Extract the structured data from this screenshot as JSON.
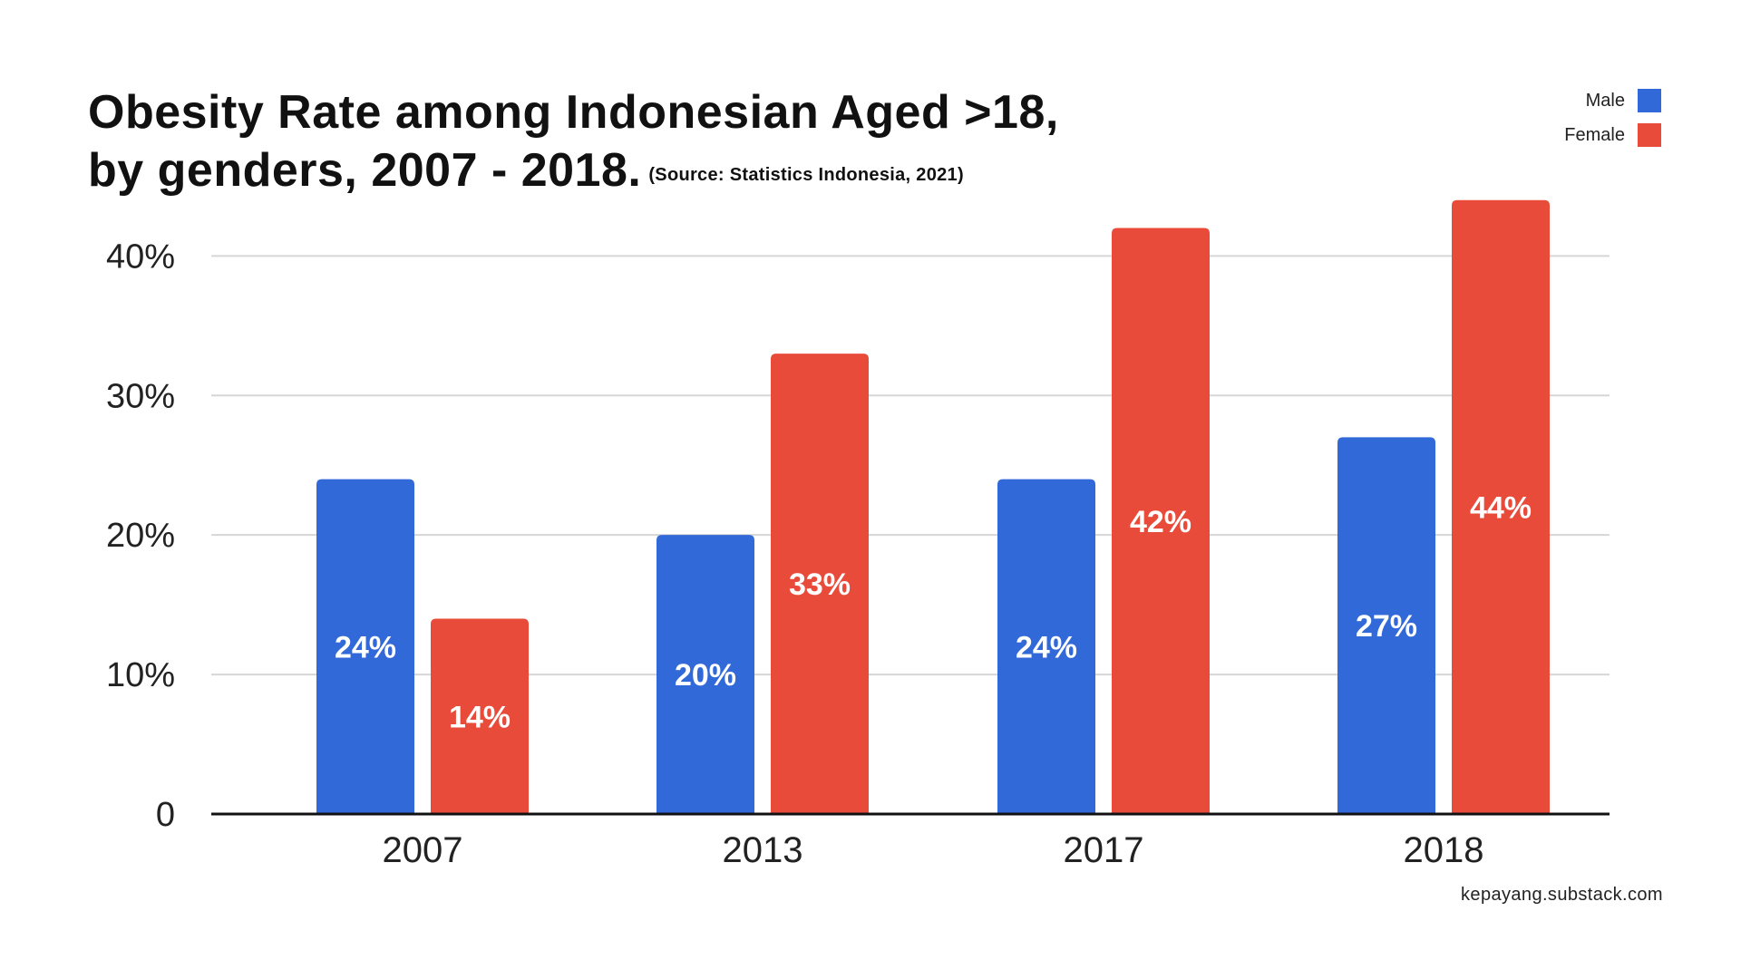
{
  "header": {
    "title_line1": "Obesity Rate among Indonesian Aged >18,",
    "title_line2": "by genders, 2007 - 2018.",
    "source": "(Source: Statistics Indonesia, 2021)"
  },
  "legend": [
    {
      "label": "Male",
      "color": "#3269d9"
    },
    {
      "label": "Female",
      "color": "#e94b3a"
    }
  ],
  "footer": {
    "watermark": "kepayang.substack.com"
  },
  "chart_data": {
    "type": "bar",
    "categories": [
      "2007",
      "2013",
      "2017",
      "2018"
    ],
    "series": [
      {
        "name": "Male",
        "color": "#3269d9",
        "values": [
          24,
          20,
          24,
          27
        ],
        "labels": [
          "24%",
          "20%",
          "24%",
          "27%"
        ]
      },
      {
        "name": "Female",
        "color": "#e94b3a",
        "values": [
          14,
          33,
          42,
          44
        ],
        "labels": [
          "14%",
          "33%",
          "42%",
          "44%"
        ]
      }
    ],
    "yticks": [
      0,
      10,
      20,
      30,
      40
    ],
    "ytick_labels": [
      "0",
      "10%",
      "20%",
      "30%",
      "40%"
    ],
    "ylim": [
      0,
      44
    ],
    "grid": true,
    "legend_position": "top-right"
  }
}
